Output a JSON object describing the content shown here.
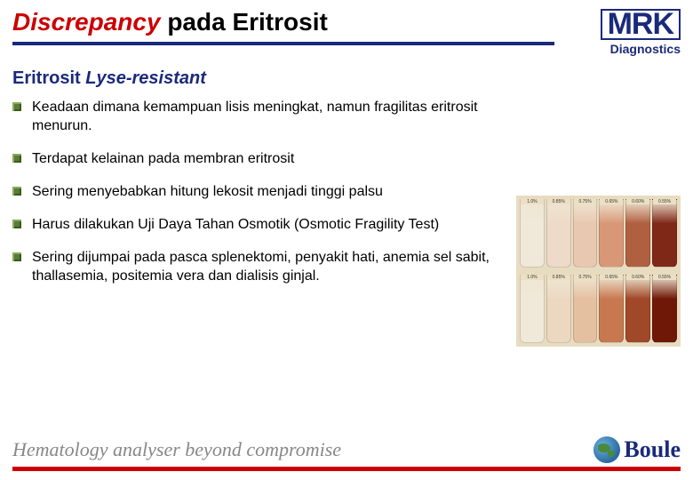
{
  "title": {
    "italic_part": "Discrepancy",
    "plain_part": "  pada Eritrosit",
    "color_italic": "#cc0000",
    "rule_color": "#1a2a7a"
  },
  "logo_top": {
    "main": "MRK",
    "sub": "Diagnostics",
    "color": "#1a2a7a"
  },
  "subtitle": {
    "plain": "Eritrosit ",
    "italic": "Lyse-resistant",
    "color": "#1a2a7a"
  },
  "bullets": [
    "Keadaan dimana kemampuan lisis meningkat, namun fragilitas eritrosit menurun.",
    "Terdapat kelainan pada membran eritrosit",
    "Sering menyebabkan hitung lekosit menjadi tinggi palsu",
    "Harus dilakukan Uji Daya Tahan Osmotik (Osmotic Fragility Test)",
    "Sering dijumpai pada pasca splenektomi, penyakit hati, anemia sel sabit, thallasemia, positemia vera dan dialisis ginjal."
  ],
  "bullet_icon_color": "#5a7a3a",
  "side_image": {
    "background": "#e8dcc0",
    "row1": {
      "labels": [
        "1.0%",
        "0.85%",
        "0.75%",
        "0.65%",
        "0.60%",
        "0.55%"
      ],
      "colors": [
        "#f0e8d8",
        "#eedac8",
        "#e8c8b0",
        "#d89878",
        "#b06040",
        "#802818"
      ]
    },
    "row2": {
      "labels": [
        "1.0%",
        "0.85%",
        "0.75%",
        "0.65%",
        "0.60%",
        "0.55%"
      ],
      "colors": [
        "#f0e8d8",
        "#ecd8c0",
        "#e4c0a0",
        "#c87850",
        "#a04828",
        "#701808"
      ]
    }
  },
  "footer": {
    "tagline": "Hematology analyser beyond compromise",
    "tagline_color": "#888888",
    "rule_color": "#cc0000",
    "logo_text": "Boule",
    "logo_color": "#1a2a7a"
  }
}
